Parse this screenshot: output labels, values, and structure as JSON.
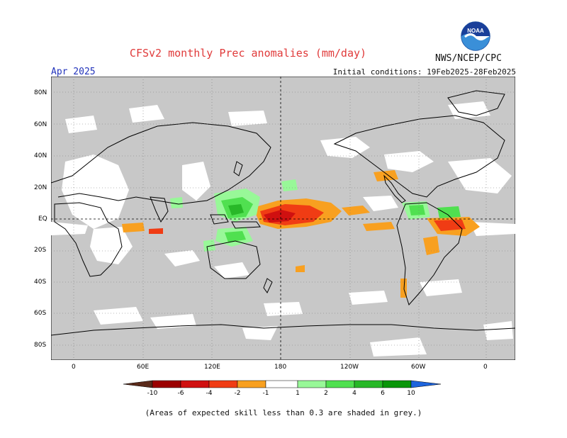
{
  "header": {
    "title": "CFSv2 monthly Prec anomalies (mm/day)",
    "month": "Apr 2025",
    "initial_conditions": "Initial conditions: 19Feb2025-28Feb2025",
    "org": "NWS/NCEP/CPC",
    "logo_text": "NOAA"
  },
  "map": {
    "lat_labels": [
      "80N",
      "60N",
      "40N",
      "20N",
      "EQ",
      "20S",
      "40S",
      "60S",
      "80S"
    ],
    "lon_labels": [
      "0",
      "60E",
      "120E",
      "180",
      "120W",
      "60W",
      "0"
    ],
    "background_color": "#c8c8c8",
    "skill_mask_color": "#ffffff"
  },
  "colorbar": {
    "ticks": [
      "-10",
      "-6",
      "-4",
      "-2",
      "-1",
      "1",
      "2",
      "4",
      "6",
      "10"
    ],
    "colors": [
      "#5a2a1a",
      "#9b0000",
      "#d01010",
      "#f03c14",
      "#f8a020",
      "#ffffff",
      "#98f898",
      "#50e050",
      "#28b828",
      "#0a960a",
      "#1e64dc"
    ]
  },
  "footnote": "(Areas of expected skill less than 0.3 are shaded in grey.)"
}
